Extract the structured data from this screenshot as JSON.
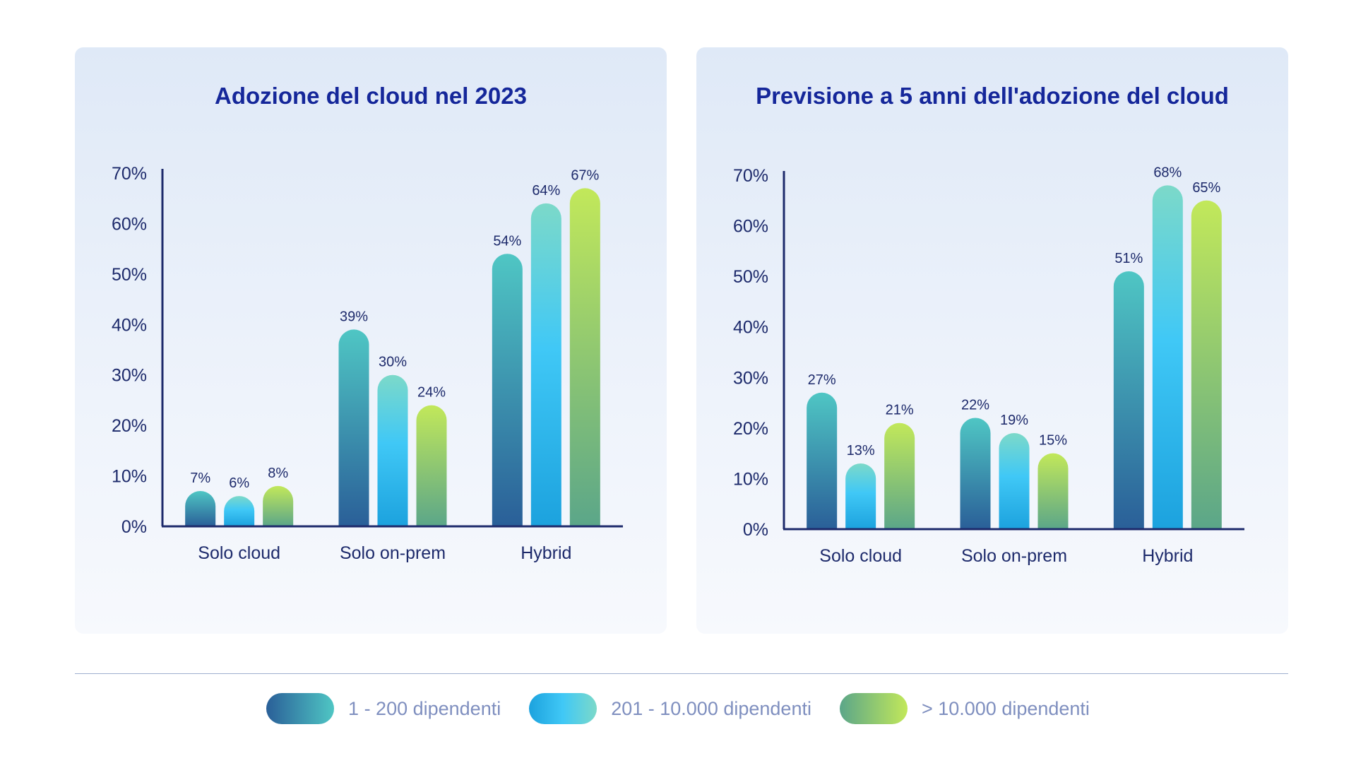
{
  "legend": {
    "items": [
      {
        "label": "1 - 200 dipendenti"
      },
      {
        "label": "201 - 10.000 dipendenti"
      },
      {
        "label": "> 10.000 dipendenti"
      }
    ]
  },
  "chart_data": [
    {
      "type": "bar",
      "title": "Adozione del cloud nel 2023",
      "xlabel": "",
      "ylabel": "",
      "categories": [
        "Solo cloud",
        "Solo on-prem",
        "Hybrid"
      ],
      "yticks": [
        "0%",
        "10%",
        "20%",
        "30%",
        "40%",
        "50%",
        "60%",
        "70%"
      ],
      "ylim": [
        0,
        70
      ],
      "grid": false,
      "series": [
        {
          "name": "1 - 200 dipendenti",
          "values": [
            7,
            39,
            54
          ],
          "labels": [
            "7%",
            "39%",
            "54%"
          ]
        },
        {
          "name": "201 - 10.000 dipendenti",
          "values": [
            6,
            30,
            64
          ],
          "labels": [
            "6%",
            "30%",
            "64%"
          ]
        },
        {
          "name": "> 10.000 dipendenti",
          "values": [
            8,
            24,
            67
          ],
          "labels": [
            "8%",
            "24%",
            "67%"
          ]
        }
      ]
    },
    {
      "type": "bar",
      "title": "Previsione a 5 anni dell'adozione del cloud",
      "xlabel": "",
      "ylabel": "",
      "categories": [
        "Solo cloud",
        "Solo on-prem",
        "Hybrid"
      ],
      "yticks": [
        "0%",
        "10%",
        "20%",
        "30%",
        "40%",
        "50%",
        "60%",
        "70%"
      ],
      "ylim": [
        0,
        70
      ],
      "grid": false,
      "series": [
        {
          "name": "1 - 200 dipendenti",
          "values": [
            27,
            22,
            51
          ],
          "labels": [
            "27%",
            "22%",
            "51%"
          ]
        },
        {
          "name": "201 - 10.000 dipendenti",
          "values": [
            13,
            19,
            68
          ],
          "labels": [
            "13%",
            "19%",
            "68%"
          ]
        },
        {
          "name": "> 10.000 dipendenti",
          "values": [
            21,
            15,
            65
          ],
          "labels": [
            "21%",
            "15%",
            "65%"
          ]
        }
      ]
    }
  ]
}
